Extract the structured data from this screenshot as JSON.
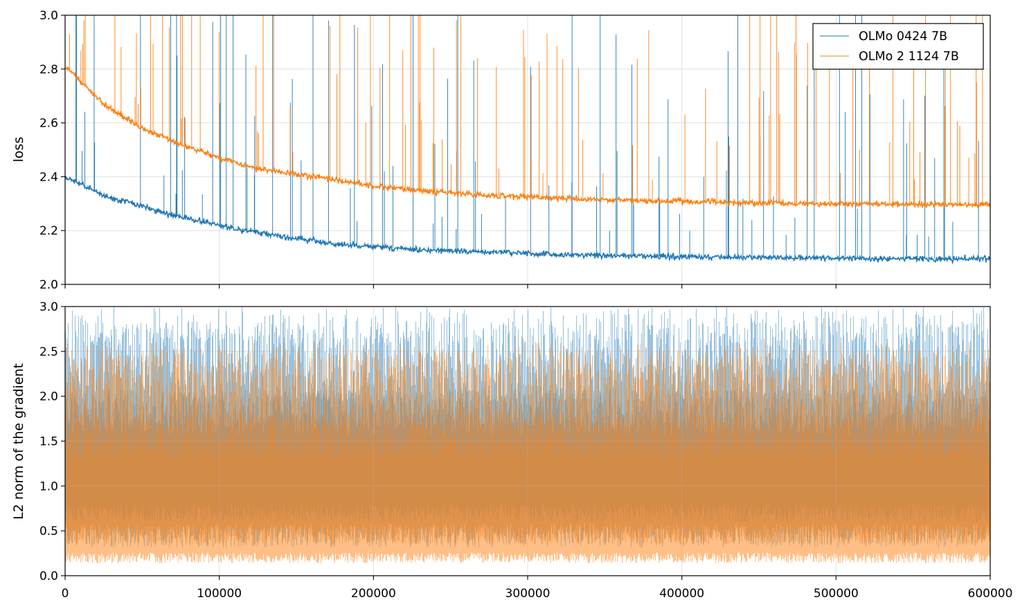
{
  "chart_data": [
    {
      "type": "line",
      "title": "",
      "xlabel": "",
      "ylabel": "loss",
      "xlim": [
        0,
        600000
      ],
      "ylim": [
        2.0,
        3.0
      ],
      "yticks": [
        "2.0",
        "2.2",
        "2.4",
        "2.6",
        "2.8",
        "3.0"
      ],
      "xticks": [
        0,
        100000,
        200000,
        300000,
        400000,
        500000,
        600000
      ],
      "grid": true,
      "legend_position": "top-right",
      "series": [
        {
          "name": "OLMo 0424 7B",
          "color": "#1f77b4",
          "x": [
            0,
            25000,
            50000,
            75000,
            100000,
            125000,
            150000,
            175000,
            200000,
            225000,
            250000,
            275000,
            300000,
            325000,
            350000,
            375000,
            400000,
            425000,
            450000,
            475000,
            500000,
            525000,
            550000,
            575000,
            600000
          ],
          "y": [
            2.4,
            2.33,
            2.29,
            2.25,
            2.22,
            2.19,
            2.17,
            2.15,
            2.14,
            2.13,
            2.125,
            2.12,
            2.115,
            2.11,
            2.108,
            2.105,
            2.103,
            2.1,
            2.1,
            2.098,
            2.097,
            2.096,
            2.096,
            2.095,
            2.095
          ],
          "noise": 0.008,
          "spikes": 95
        },
        {
          "name": "OLMo 2 1124 7B",
          "color": "#ff7f0e",
          "x": [
            0,
            25000,
            50000,
            75000,
            100000,
            125000,
            150000,
            175000,
            200000,
            225000,
            250000,
            275000,
            300000,
            325000,
            350000,
            375000,
            400000,
            425000,
            450000,
            475000,
            500000,
            525000,
            550000,
            575000,
            600000
          ],
          "y": [
            2.81,
            2.67,
            2.58,
            2.52,
            2.47,
            2.43,
            2.41,
            2.39,
            2.365,
            2.35,
            2.34,
            2.33,
            2.325,
            2.32,
            2.315,
            2.31,
            2.308,
            2.305,
            2.303,
            2.3,
            2.3,
            2.298,
            2.297,
            2.297,
            2.297
          ],
          "noise": 0.008,
          "spikes": 110
        }
      ]
    },
    {
      "type": "line",
      "title": "",
      "xlabel": "",
      "ylabel": "L2 norm of the gradient",
      "xlim": [
        0,
        600000
      ],
      "ylim": [
        0.0,
        3.0
      ],
      "yticks": [
        "0.0",
        "0.5",
        "1.0",
        "1.5",
        "2.0",
        "2.5",
        "3.0"
      ],
      "xticks": [
        "0",
        "100000",
        "200000",
        "300000",
        "400000",
        "500000",
        "600000"
      ],
      "grid": true,
      "series": [
        {
          "name": "OLMo 0424 7B",
          "color": "#1f77b4",
          "band_low": 0.45,
          "band_high": 2.2,
          "peak_max": 3.0
        },
        {
          "name": "OLMo 2 1124 7B",
          "color": "#ff7f0e",
          "band_low": 0.2,
          "band_high": 1.9,
          "peak_max": 2.6
        }
      ]
    }
  ]
}
